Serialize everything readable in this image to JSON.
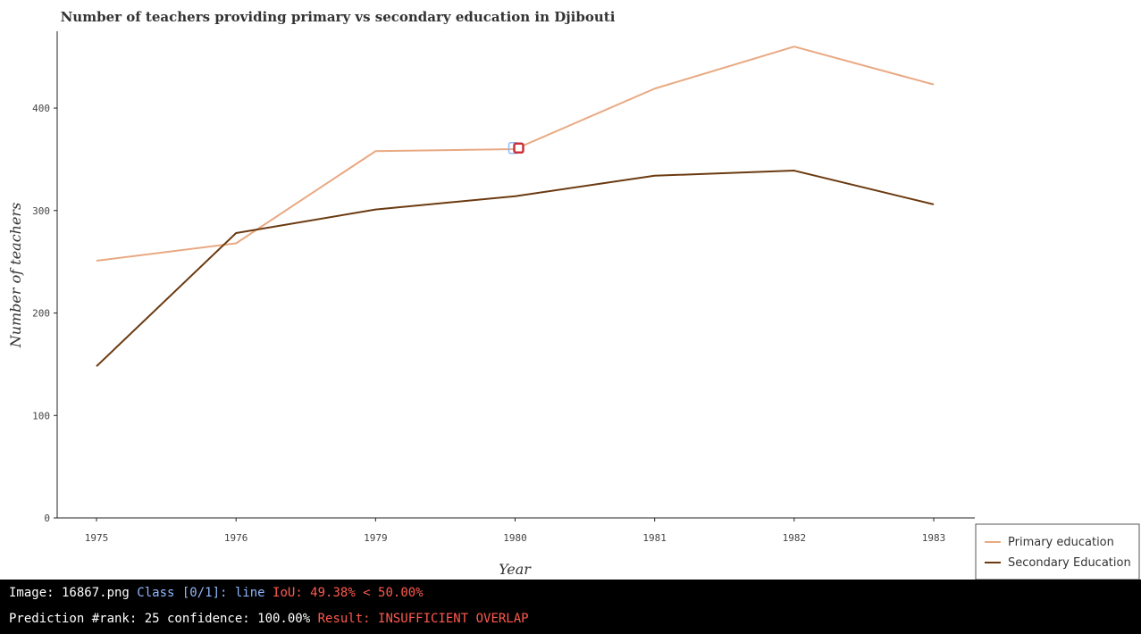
{
  "chart_data": {
    "type": "line",
    "title": "Number of teachers providing primary vs secondary education in Djibouti",
    "xlabel": "Year",
    "ylabel": "Number of teachers",
    "categories": [
      "1975",
      "1976",
      "1979",
      "1980",
      "1981",
      "1982",
      "1983"
    ],
    "ylim": [
      0,
      475
    ],
    "yticks": [
      0,
      100,
      200,
      300,
      400
    ],
    "grid": false,
    "legend_position": "bottom-right",
    "series": [
      {
        "name": "Primary education",
        "color": "#e8a982",
        "values": [
          251,
          268,
          358,
          360,
          419,
          460,
          423
        ]
      },
      {
        "name": "Secondary Education",
        "color": "#6b3a10",
        "values": [
          148,
          278,
          301,
          314,
          334,
          339,
          306
        ]
      }
    ],
    "highlight": {
      "category": "1980",
      "value": 361,
      "border_color": "#c8323c",
      "fill_color": "#ffffff",
      "ghost_color": "#8fb7ff"
    }
  },
  "status": {
    "line1": {
      "image": "Image: 16867.png",
      "class": "Class [0/1]: line",
      "iou": "IoU: 49.38% < 50.00%"
    },
    "line2": {
      "prediction": "Prediction #rank: 25 confidence: 100.00%",
      "result": "Result: INSUFFICIENT OVERLAP"
    }
  }
}
